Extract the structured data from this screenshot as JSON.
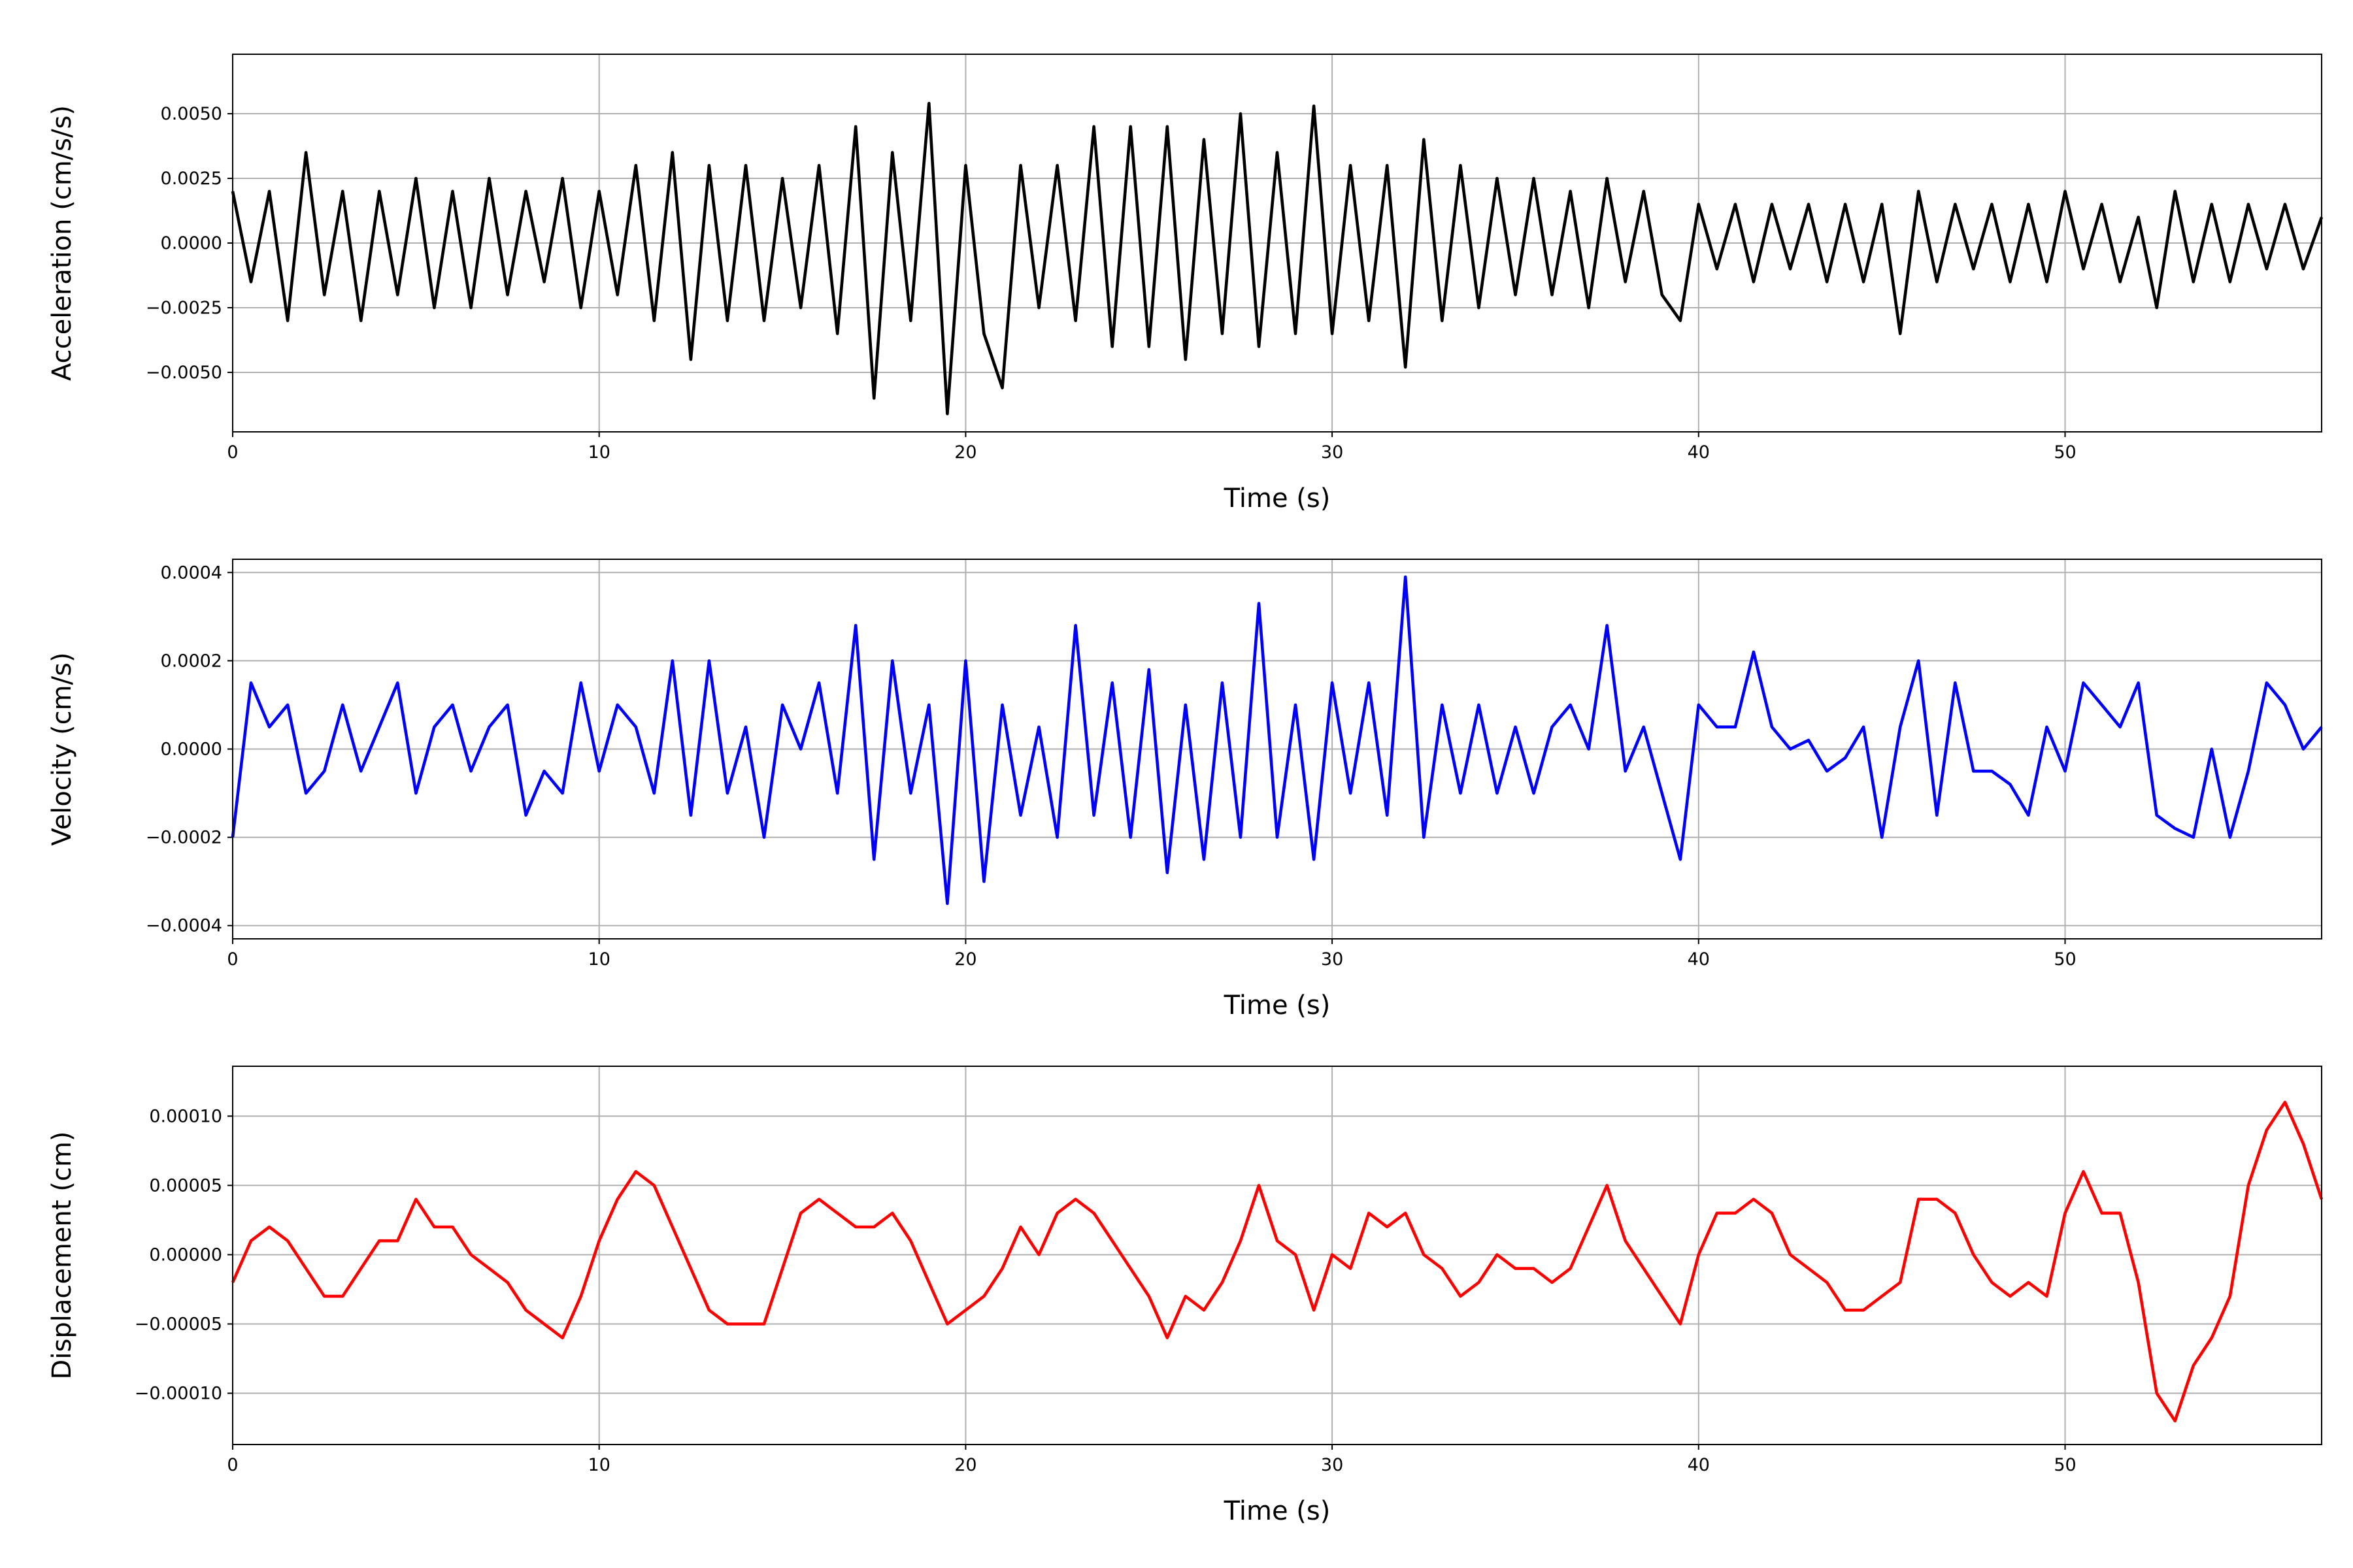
{
  "chart_data": [
    {
      "type": "line",
      "ylabel": "Acceleration (cm/s/s)",
      "xlabel": "Time (s)",
      "color": "#000000",
      "grid": true,
      "xlim": [
        0,
        57
      ],
      "xticks": [
        0,
        10,
        20,
        30,
        40,
        50
      ],
      "ylim": [
        -0.0073,
        0.0073
      ],
      "yticks": [
        {
          "value": -0.005,
          "label": "−0.0050"
        },
        {
          "value": -0.0025,
          "label": "−0.0025"
        },
        {
          "value": 0,
          "label": "0.0000"
        },
        {
          "value": 0.0025,
          "label": "0.0025"
        },
        {
          "value": 0.005,
          "label": "0.0050"
        }
      ],
      "x": [
        0,
        0.5,
        1,
        1.5,
        2,
        2.5,
        3,
        3.5,
        4,
        4.5,
        5,
        5.5,
        6,
        6.5,
        7,
        7.5,
        8,
        8.5,
        9,
        9.5,
        10,
        10.5,
        11,
        11.5,
        12,
        12.5,
        13,
        13.5,
        14,
        14.5,
        15,
        15.5,
        16,
        16.5,
        17,
        17.5,
        18,
        18.5,
        19,
        19.5,
        20,
        20.5,
        21,
        21.5,
        22,
        22.5,
        23,
        23.5,
        24,
        24.5,
        25,
        25.5,
        26,
        26.5,
        27,
        27.5,
        28,
        28.5,
        29,
        29.5,
        30,
        30.5,
        31,
        31.5,
        32,
        32.5,
        33,
        33.5,
        34,
        34.5,
        35,
        35.5,
        36,
        36.5,
        37,
        37.5,
        38,
        38.5,
        39,
        39.5,
        40,
        40.5,
        41,
        41.5,
        42,
        42.5,
        43,
        43.5,
        44,
        44.5,
        45,
        45.5,
        46,
        46.5,
        47,
        47.5,
        48,
        48.5,
        49,
        49.5,
        50,
        50.5,
        51,
        51.5,
        52,
        52.5,
        53,
        53.5,
        54,
        54.5,
        55,
        55.5,
        56,
        56.5,
        57
      ],
      "values": [
        0.002,
        -0.0015,
        0.002,
        -0.003,
        0.0035,
        -0.002,
        0.002,
        -0.003,
        0.002,
        -0.002,
        0.0025,
        -0.0025,
        0.002,
        -0.0025,
        0.0025,
        -0.002,
        0.002,
        -0.0015,
        0.0025,
        -0.0025,
        0.002,
        -0.002,
        0.003,
        -0.003,
        0.0035,
        -0.0045,
        0.003,
        -0.003,
        0.003,
        -0.003,
        0.0025,
        -0.0025,
        0.003,
        -0.0035,
        0.0045,
        -0.006,
        0.0035,
        -0.003,
        0.0054,
        -0.0066,
        0.003,
        -0.0035,
        -0.0056,
        0.003,
        -0.0025,
        0.003,
        -0.003,
        0.0045,
        -0.004,
        0.0045,
        -0.004,
        0.0045,
        -0.0045,
        0.004,
        -0.0035,
        0.005,
        -0.004,
        0.0035,
        -0.0035,
        0.0053,
        -0.0035,
        0.003,
        -0.003,
        0.003,
        -0.0048,
        0.004,
        -0.003,
        0.003,
        -0.0025,
        0.0025,
        -0.002,
        0.0025,
        -0.002,
        0.002,
        -0.0025,
        0.0025,
        -0.0015,
        0.002,
        -0.002,
        -0.003,
        0.0015,
        -0.001,
        0.0015,
        -0.0015,
        0.0015,
        -0.001,
        0.0015,
        -0.0015,
        0.0015,
        -0.0015,
        0.0015,
        -0.0035,
        0.002,
        -0.0015,
        0.0015,
        -0.001,
        0.0015,
        -0.0015,
        0.0015,
        -0.0015,
        0.002,
        -0.001,
        0.0015,
        -0.0015,
        0.001,
        -0.0025,
        0.002,
        -0.0015,
        0.0015,
        -0.0015,
        0.0015,
        -0.001,
        0.0015,
        -0.001,
        0.001
      ]
    },
    {
      "type": "line",
      "ylabel": "Velocity (cm/s)",
      "xlabel": "Time (s)",
      "color": "#0000ff",
      "grid": true,
      "xlim": [
        0,
        57
      ],
      "xticks": [
        0,
        10,
        20,
        30,
        40,
        50
      ],
      "ylim": [
        -0.00043,
        0.00043
      ],
      "yticks": [
        {
          "value": -0.0004,
          "label": "−0.0004"
        },
        {
          "value": -0.0002,
          "label": "−0.0002"
        },
        {
          "value": 0,
          "label": "0.0000"
        },
        {
          "value": 0.0002,
          "label": "0.0002"
        },
        {
          "value": 0.0004,
          "label": "0.0004"
        }
      ],
      "x": [
        0,
        0.5,
        1,
        1.5,
        2,
        2.5,
        3,
        3.5,
        4,
        4.5,
        5,
        5.5,
        6,
        6.5,
        7,
        7.5,
        8,
        8.5,
        9,
        9.5,
        10,
        10.5,
        11,
        11.5,
        12,
        12.5,
        13,
        13.5,
        14,
        14.5,
        15,
        15.5,
        16,
        16.5,
        17,
        17.5,
        18,
        18.5,
        19,
        19.5,
        20,
        20.5,
        21,
        21.5,
        22,
        22.5,
        23,
        23.5,
        24,
        24.5,
        25,
        25.5,
        26,
        26.5,
        27,
        27.5,
        28,
        28.5,
        29,
        29.5,
        30,
        30.5,
        31,
        31.5,
        32,
        32.5,
        33,
        33.5,
        34,
        34.5,
        35,
        35.5,
        36,
        36.5,
        37,
        37.5,
        38,
        38.5,
        39,
        39.5,
        40,
        40.5,
        41,
        41.5,
        42,
        42.5,
        43,
        43.5,
        44,
        44.5,
        45,
        45.5,
        46,
        46.5,
        47,
        47.5,
        48,
        48.5,
        49,
        49.5,
        50,
        50.5,
        51,
        51.5,
        52,
        52.5,
        53,
        53.5,
        54,
        54.5,
        55,
        55.5,
        56,
        56.5,
        57
      ],
      "values": [
        -0.0002,
        0.00015,
        5e-05,
        0.0001,
        -0.0001,
        -5e-05,
        0.0001,
        -5e-05,
        5e-05,
        0.00015,
        -0.0001,
        5e-05,
        0.0001,
        -5e-05,
        5e-05,
        0.0001,
        -0.00015,
        -5e-05,
        -0.0001,
        0.00015,
        -5e-05,
        0.0001,
        5e-05,
        -0.0001,
        0.0002,
        -0.00015,
        0.0002,
        -0.0001,
        5e-05,
        -0.0002,
        0.0001,
        0,
        0.00015,
        -0.0001,
        0.00028,
        -0.00025,
        0.0002,
        -0.0001,
        0.0001,
        -0.00035,
        0.0002,
        -0.0003,
        0.0001,
        -0.00015,
        5e-05,
        -0.0002,
        0.00028,
        -0.00015,
        0.00015,
        -0.0002,
        0.00018,
        -0.00028,
        0.0001,
        -0.00025,
        0.00015,
        -0.0002,
        0.00033,
        -0.0002,
        0.0001,
        -0.00025,
        0.00015,
        -0.0001,
        0.00015,
        -0.00015,
        0.00039,
        -0.0002,
        0.0001,
        -0.0001,
        0.0001,
        -0.0001,
        5e-05,
        -0.0001,
        5e-05,
        0.0001,
        0,
        0.00028,
        -5e-05,
        5e-05,
        -0.0001,
        -0.00025,
        0.0001,
        5e-05,
        5e-05,
        0.00022,
        5e-05,
        0,
        2e-05,
        -5e-05,
        -2e-05,
        5e-05,
        -0.0002,
        5e-05,
        0.0002,
        -0.00015,
        0.00015,
        -5e-05,
        -5e-05,
        -8e-05,
        -0.00015,
        5e-05,
        -5e-05,
        0.00015,
        0.0001,
        5e-05,
        0.00015,
        -0.00015,
        -0.00018,
        -0.0002,
        0,
        -0.0002,
        -5e-05,
        0.00015,
        0.0001,
        0,
        5e-05
      ]
    },
    {
      "type": "line",
      "ylabel": "Displacement (cm)",
      "xlabel": "Time (s)",
      "color": "#ff0000",
      "grid": true,
      "xlim": [
        0,
        57
      ],
      "xticks": [
        0,
        10,
        20,
        30,
        40,
        50
      ],
      "ylim": [
        -0.000137,
        0.000136
      ],
      "yticks": [
        {
          "value": -0.0001,
          "label": "−0.00010"
        },
        {
          "value": -5e-05,
          "label": "−0.00005"
        },
        {
          "value": 0,
          "label": "0.00000"
        },
        {
          "value": 5e-05,
          "label": "0.00005"
        },
        {
          "value": 0.0001,
          "label": "0.00010"
        }
      ],
      "x": [
        0,
        0.5,
        1,
        1.5,
        2,
        2.5,
        3,
        3.5,
        4,
        4.5,
        5,
        5.5,
        6,
        6.5,
        7,
        7.5,
        8,
        8.5,
        9,
        9.5,
        10,
        10.5,
        11,
        11.5,
        12,
        12.5,
        13,
        13.5,
        14,
        14.5,
        15,
        15.5,
        16,
        16.5,
        17,
        17.5,
        18,
        18.5,
        19,
        19.5,
        20,
        20.5,
        21,
        21.5,
        22,
        22.5,
        23,
        23.5,
        24,
        24.5,
        25,
        25.5,
        26,
        26.5,
        27,
        27.5,
        28,
        28.5,
        29,
        29.5,
        30,
        30.5,
        31,
        31.5,
        32,
        32.5,
        33,
        33.5,
        34,
        34.5,
        35,
        35.5,
        36,
        36.5,
        37,
        37.5,
        38,
        38.5,
        39,
        39.5,
        40,
        40.5,
        41,
        41.5,
        42,
        42.5,
        43,
        43.5,
        44,
        44.5,
        45,
        45.5,
        46,
        46.5,
        47,
        47.5,
        48,
        48.5,
        49,
        49.5,
        50,
        50.5,
        51,
        51.5,
        52,
        52.5,
        53,
        53.5,
        54,
        54.5,
        55,
        55.5,
        56,
        56.5,
        57
      ],
      "values": [
        -2e-05,
        1e-05,
        2e-05,
        1e-05,
        -1e-05,
        -3e-05,
        -3e-05,
        -1e-05,
        1e-05,
        1e-05,
        4e-05,
        2e-05,
        2e-05,
        0,
        -1e-05,
        -2e-05,
        -4e-05,
        -5e-05,
        -6e-05,
        -3e-05,
        1e-05,
        4e-05,
        6e-05,
        5e-05,
        2e-05,
        -1e-05,
        -4e-05,
        -5e-05,
        -5e-05,
        -5e-05,
        -1e-05,
        3e-05,
        4e-05,
        3e-05,
        2e-05,
        2e-05,
        3e-05,
        1e-05,
        -2e-05,
        -5e-05,
        -4e-05,
        -3e-05,
        -1e-05,
        2e-05,
        0,
        3e-05,
        4e-05,
        3e-05,
        1e-05,
        -1e-05,
        -3e-05,
        -6e-05,
        -3e-05,
        -4e-05,
        -2e-05,
        1e-05,
        5e-05,
        1e-05,
        0,
        -4e-05,
        0,
        -1e-05,
        3e-05,
        2e-05,
        3e-05,
        0,
        -1e-05,
        -3e-05,
        -2e-05,
        0,
        -1e-05,
        -1e-05,
        -2e-05,
        -1e-05,
        2e-05,
        5e-05,
        1e-05,
        -1e-05,
        -3e-05,
        -5e-05,
        0,
        3e-05,
        3e-05,
        4e-05,
        3e-05,
        0,
        -1e-05,
        -2e-05,
        -4e-05,
        -4e-05,
        -3e-05,
        -2e-05,
        4e-05,
        4e-05,
        3e-05,
        0,
        -2e-05,
        -3e-05,
        -2e-05,
        -3e-05,
        3e-05,
        6e-05,
        3e-05,
        3e-05,
        -2e-05,
        -0.0001,
        -0.00012,
        -8e-05,
        -6e-05,
        -3e-05,
        5e-05,
        9e-05,
        0.00011,
        8e-05,
        4e-05
      ]
    }
  ]
}
